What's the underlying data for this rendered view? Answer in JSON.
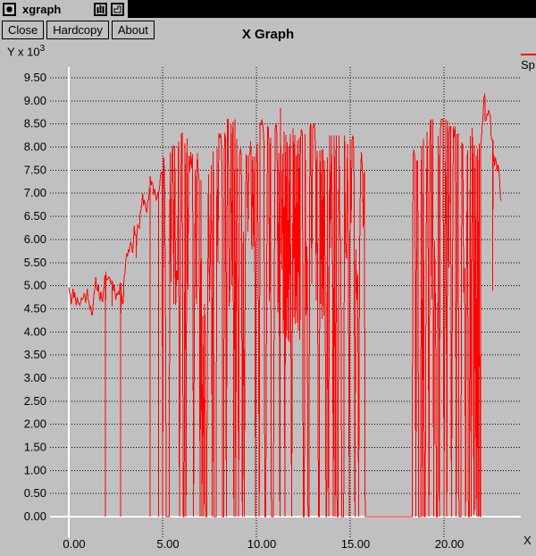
{
  "window": {
    "title": "xgraph"
  },
  "titlebar_icons": {
    "menu": "window-menu-icon",
    "iconify": "iconify-icon",
    "resize": "resize-icon"
  },
  "toolbar": {
    "close_label": "Close",
    "hardcopy_label": "Hardcopy",
    "about_label": "About"
  },
  "colors": {
    "background": "#c0c0c0",
    "titlebar_fill": "#000000",
    "series_red": "#ff0000",
    "axis_white": "#ffffff",
    "grid_black": "#000000"
  },
  "chart_data": {
    "type": "line",
    "title": "X Graph",
    "xlabel": "X",
    "y_unit_base": "Y x 10",
    "y_unit_exp": "3",
    "grid": true,
    "legend_position": "top-right",
    "legend": [
      {
        "label": "Sp",
        "color": "#ff0000"
      }
    ],
    "xlim": [
      0,
      23.4
    ],
    "ylim": [
      0,
      9.5
    ],
    "x_ticks": [
      {
        "v": 0,
        "label": "0.00"
      },
      {
        "v": 5,
        "label": "5.00"
      },
      {
        "v": 10,
        "label": "10.00"
      },
      {
        "v": 15,
        "label": "15.00"
      },
      {
        "v": 20,
        "label": "20.00"
      }
    ],
    "y_ticks": [
      {
        "v": 0.0,
        "label": "0.00"
      },
      {
        "v": 0.5,
        "label": "0.50"
      },
      {
        "v": 1.0,
        "label": "1.00"
      },
      {
        "v": 1.5,
        "label": "1.50"
      },
      {
        "v": 2.0,
        "label": "2.00"
      },
      {
        "v": 2.5,
        "label": "2.50"
      },
      {
        "v": 3.0,
        "label": "3.00"
      },
      {
        "v": 3.5,
        "label": "3.50"
      },
      {
        "v": 4.0,
        "label": "4.00"
      },
      {
        "v": 4.5,
        "label": "4.50"
      },
      {
        "v": 5.0,
        "label": "5.00"
      },
      {
        "v": 5.5,
        "label": "5.50"
      },
      {
        "v": 6.0,
        "label": "6.00"
      },
      {
        "v": 6.5,
        "label": "6.50"
      },
      {
        "v": 7.0,
        "label": "7.00"
      },
      {
        "v": 7.5,
        "label": "7.50"
      },
      {
        "v": 8.0,
        "label": "8.00"
      },
      {
        "v": 8.5,
        "label": "8.50"
      },
      {
        "v": 9.0,
        "label": "9.00"
      },
      {
        "v": 9.5,
        "label": "9.50"
      }
    ],
    "series": [
      {
        "name": "Sp",
        "color": "#ff0000",
        "seed": 11,
        "segments": [
          {
            "type": "walk",
            "x0": 0.0,
            "x1": 1.92,
            "from": 5.1,
            "to": 5.0,
            "amp": 0.5,
            "min": 4.35,
            "max": 5.55
          },
          {
            "type": "walk",
            "x0": 1.92,
            "x1": 2.95,
            "from": 5.0,
            "to": 5.15,
            "amp": 0.45,
            "min": 4.5,
            "max": 5.5,
            "drops": [
              1.95,
              2.76
            ],
            "dips": [
              [
                2.3,
                4.55
              ]
            ]
          },
          {
            "type": "walk",
            "x0": 2.95,
            "x1": 4.3,
            "from": 5.15,
            "to": 7.0,
            "amp": 0.55,
            "min": 4.9,
            "max": 7.4,
            "dips": [
              [
                3.6,
                5.6
              ]
            ]
          },
          {
            "type": "walk",
            "x0": 4.3,
            "x1": 5.0,
            "from": 7.0,
            "to": 7.2,
            "amp": 0.65,
            "min": 6.2,
            "max": 7.6,
            "drops": [
              4.33,
              4.78
            ]
          },
          {
            "type": "burst",
            "x0": 5.0,
            "x1": 8.2,
            "top": [
              7.25,
              8.3
            ],
            "low": [
              4.3,
              6.3
            ],
            "pZero": 0.28,
            "pLow": 0.3,
            "gaps": [
              [
                6.08,
                6.16
              ]
            ]
          },
          {
            "type": "burst",
            "x0": 8.2,
            "x1": 11.4,
            "top": [
              7.8,
              8.6
            ],
            "low": [
              4.0,
              6.2
            ],
            "pZero": 0.3,
            "pLow": 0.26,
            "spikes": [
              [
                11.28,
                8.85
              ]
            ]
          },
          {
            "type": "dense",
            "x0": 11.4,
            "x1": 12.35,
            "top": [
              7.8,
              8.45
            ],
            "bot": [
              3.6,
              4.35
            ],
            "pZero": 0.1
          },
          {
            "type": "burst",
            "x0": 12.35,
            "x1": 13.15,
            "top": [
              7.9,
              8.5
            ],
            "low": [
              4.3,
              6.2
            ],
            "pZero": 0.3,
            "pLow": 0.25
          },
          {
            "type": "dense",
            "x0": 13.15,
            "x1": 13.8,
            "top": [
              7.7,
              8.3
            ],
            "bot": [
              4.0,
              4.7
            ],
            "pZero": 0.12
          },
          {
            "type": "burst",
            "x0": 13.8,
            "x1": 15.85,
            "top": [
              7.35,
              8.25
            ],
            "low": [
              4.6,
              6.6
            ],
            "pZero": 0.32,
            "pLow": 0.24,
            "gaps": [
              [
                14.6,
                14.66
              ]
            ]
          },
          {
            "type": "flat",
            "x0": 15.85,
            "x1": 18.3,
            "v": 0
          },
          {
            "type": "burst",
            "x0": 18.3,
            "x1": 20.3,
            "top": [
              7.7,
              8.6
            ],
            "low": [
              4.2,
              6.2
            ],
            "pZero": 0.28,
            "pLow": 0.22,
            "gaps": [
              [
                18.92,
                19.04
              ],
              [
                19.56,
                19.66
              ]
            ],
            "spikes": [
              [
                20.47,
                9.1
              ]
            ]
          },
          {
            "type": "burst",
            "x0": 20.3,
            "x1": 21.55,
            "top": [
              7.7,
              8.45
            ],
            "low": [
              4.5,
              6.3
            ],
            "pZero": 0.3,
            "pLow": 0.24,
            "gaps": [
              [
                20.78,
                20.92
              ]
            ]
          },
          {
            "type": "dense",
            "x0": 21.55,
            "x1": 21.95,
            "top": [
              7.6,
              8.3
            ],
            "bot": [
              0,
              0.4
            ],
            "pZero": 0.3
          },
          {
            "type": "walk",
            "x0": 21.95,
            "x1": 22.2,
            "from": 7.8,
            "to": 9.35,
            "amp": 0.7,
            "min": 7.2,
            "max": 9.38
          },
          {
            "type": "walk",
            "x0": 22.2,
            "x1": 23.1,
            "from": 9.1,
            "to": 6.4,
            "amp": 0.75,
            "min": 5.95,
            "max": 9.3,
            "dips": [
              [
                22.6,
                4.9
              ]
            ]
          }
        ]
      }
    ]
  }
}
